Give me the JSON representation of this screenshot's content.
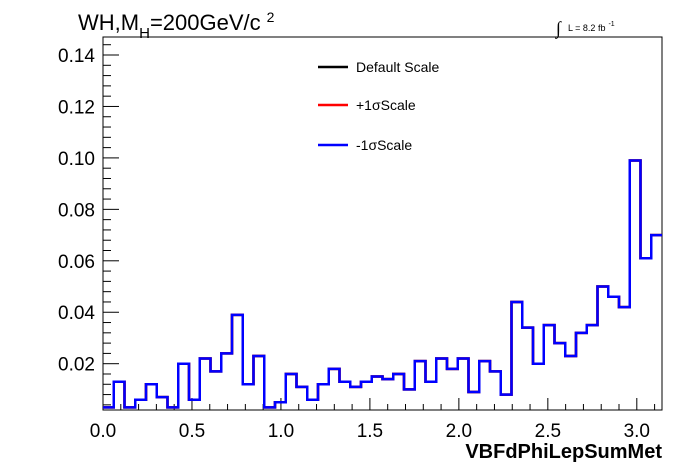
{
  "chart_data": {
    "type": "line",
    "title": {
      "base": "WH,M",
      "sub": "H",
      "mid": "=200GeV/c",
      "sup": "2"
    },
    "lumi": {
      "prefix": "∫",
      "text": "L = 8.2 fb",
      "sup": "-1"
    },
    "xlabel": "VBFdPhiLepSumMet",
    "ylabel": "",
    "xlim": [
      0,
      3.1416
    ],
    "ylim": [
      0.002,
      0.147
    ],
    "xticks": [
      0.0,
      0.5,
      1.0,
      1.5,
      2.0,
      2.5,
      3.0
    ],
    "xtick_labels": [
      "0.0",
      "0.5",
      "1.0",
      "1.5",
      "2.0",
      "2.5",
      "3.0"
    ],
    "yticks": [
      0.02,
      0.04,
      0.06,
      0.08,
      0.1,
      0.12,
      0.14
    ],
    "ytick_labels": [
      "0.02",
      "0.04",
      "0.06",
      "0.08",
      "0.10",
      "0.12",
      "0.14"
    ],
    "grid": false,
    "legend_position": "top-center",
    "n_bins": 50,
    "series": [
      {
        "name": "Default Scale",
        "color": "#000000",
        "values": [
          0.003,
          0.013,
          0.003,
          0.006,
          0.012,
          0.007,
          0.003,
          0.02,
          0.006,
          0.022,
          0.017,
          0.024,
          0.039,
          0.012,
          0.023,
          0.003,
          0.005,
          0.016,
          0.011,
          0.006,
          0.012,
          0.018,
          0.013,
          0.011,
          0.013,
          0.015,
          0.014,
          0.016,
          0.01,
          0.021,
          0.013,
          0.022,
          0.018,
          0.022,
          0.009,
          0.021,
          0.017,
          0.008,
          0.044,
          0.034,
          0.02,
          0.035,
          0.028,
          0.023,
          0.032,
          0.035,
          0.05,
          0.046,
          0.042,
          0.099
        ]
      },
      {
        "name": "+1σScale",
        "color": "#ff0000",
        "values": [
          0.003,
          0.013,
          0.003,
          0.006,
          0.012,
          0.007,
          0.003,
          0.02,
          0.006,
          0.022,
          0.017,
          0.024,
          0.039,
          0.012,
          0.023,
          0.003,
          0.005,
          0.016,
          0.011,
          0.006,
          0.012,
          0.018,
          0.013,
          0.011,
          0.013,
          0.015,
          0.014,
          0.016,
          0.01,
          0.021,
          0.013,
          0.022,
          0.018,
          0.022,
          0.009,
          0.021,
          0.017,
          0.008,
          0.044,
          0.034,
          0.02,
          0.035,
          0.028,
          0.023,
          0.032,
          0.035,
          0.05,
          0.046,
          0.042,
          0.099
        ]
      },
      {
        "name": "-1σScale",
        "color": "#0000ff",
        "values": [
          0.003,
          0.013,
          0.003,
          0.006,
          0.012,
          0.007,
          0.003,
          0.02,
          0.006,
          0.022,
          0.017,
          0.024,
          0.039,
          0.012,
          0.023,
          0.003,
          0.005,
          0.016,
          0.011,
          0.006,
          0.012,
          0.018,
          0.013,
          0.011,
          0.013,
          0.015,
          0.014,
          0.016,
          0.01,
          0.021,
          0.013,
          0.022,
          0.018,
          0.022,
          0.009,
          0.021,
          0.017,
          0.008,
          0.044,
          0.034,
          0.02,
          0.035,
          0.028,
          0.023,
          0.032,
          0.035,
          0.05,
          0.046,
          0.042,
          0.099
        ]
      }
    ],
    "overflow_tail": [
      0.061,
      0.07
    ]
  }
}
